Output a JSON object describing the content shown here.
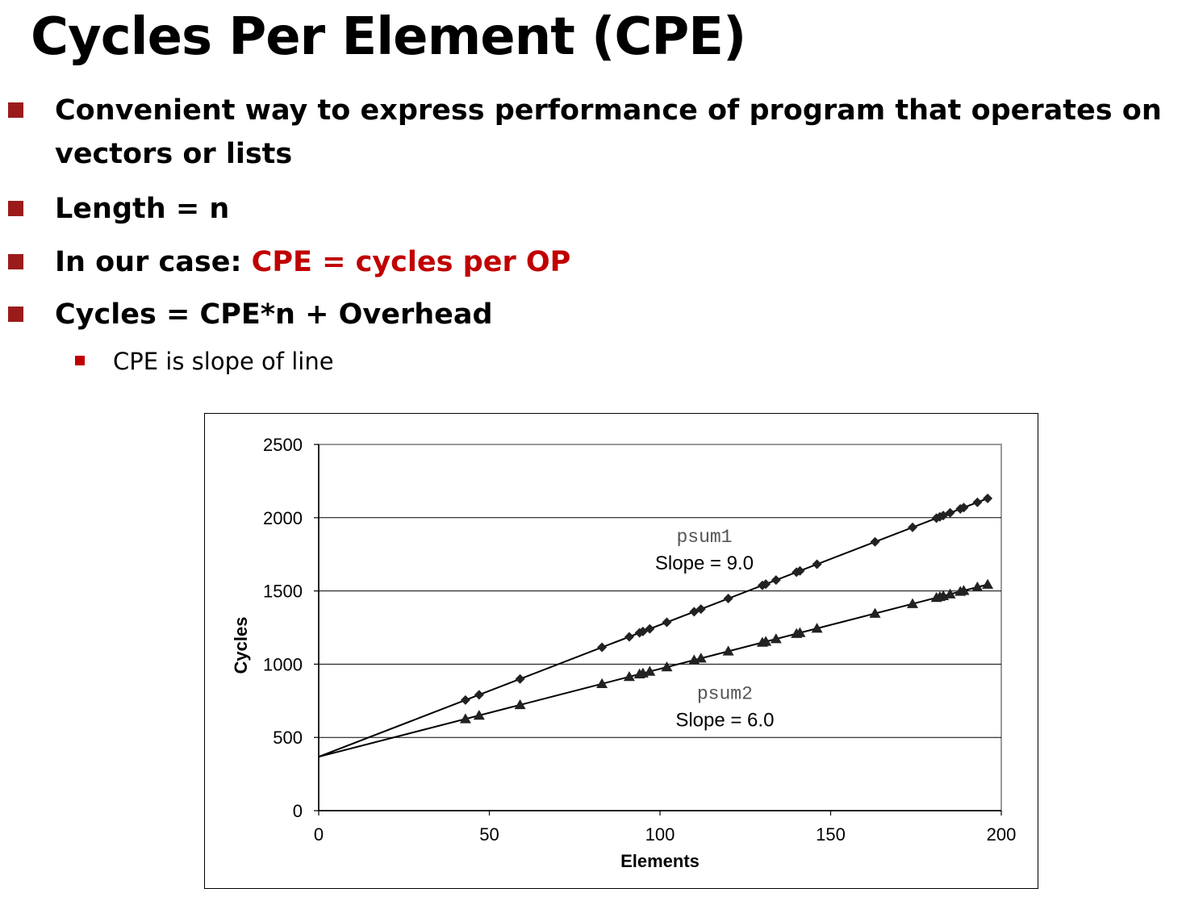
{
  "slide": {
    "title": "Cycles Per Element (CPE)",
    "bullets": [
      "Convenient way to express performance of program that operates on",
      "vectors or lists",
      "Length = n",
      "In our case: ",
      "CPE = cycles per OP",
      "Cycles = CPE*n + Overhead"
    ],
    "sub_bullets": [
      "CPE is slope of line"
    ]
  },
  "colors": {
    "accent": "#c00000",
    "bullet_marker": "#9b1b1b",
    "line": "#000000",
    "marker": "#222222",
    "grid": "#000000"
  },
  "chart_data": {
    "type": "scatter",
    "title": "",
    "xlabel": "Elements",
    "ylabel": "Cycles",
    "xlim": [
      0,
      200
    ],
    "ylim": [
      0,
      2500
    ],
    "xticks": [
      0,
      50,
      100,
      150,
      200
    ],
    "yticks": [
      0,
      500,
      1000,
      1500,
      2000,
      2500
    ],
    "x_tick_labels": [
      "0",
      "50",
      "100",
      "150",
      "200"
    ],
    "y_tick_labels": [
      "0",
      "500",
      "1000",
      "1500",
      "2000",
      "2500"
    ],
    "grid": "horizontal",
    "series": [
      {
        "name": "psum1",
        "marker": "diamond",
        "fit": {
          "slope": 9.0,
          "intercept": 368
        },
        "x": [
          43,
          47,
          59,
          83,
          91,
          94,
          95,
          97,
          102,
          110,
          112,
          120,
          130,
          131,
          134,
          140,
          141,
          146,
          163,
          174,
          181,
          182,
          183,
          185,
          188,
          189,
          193,
          196
        ],
        "y": [
          755,
          791,
          899,
          1115,
          1187,
          1214,
          1223,
          1241,
          1286,
          1358,
          1376,
          1448,
          1538,
          1547,
          1574,
          1628,
          1637,
          1682,
          1835,
          1934,
          1997,
          2006,
          2015,
          2033,
          2060,
          2069,
          2105,
          2132
        ]
      },
      {
        "name": "psum2",
        "marker": "triangle",
        "fit": {
          "slope": 6.0,
          "intercept": 368
        },
        "x": [
          43,
          47,
          59,
          83,
          91,
          94,
          95,
          97,
          102,
          110,
          112,
          120,
          130,
          131,
          134,
          140,
          141,
          146,
          163,
          174,
          181,
          182,
          183,
          185,
          188,
          189,
          193,
          196
        ],
        "y": [
          626,
          650,
          722,
          866,
          914,
          932,
          938,
          950,
          980,
          1028,
          1040,
          1088,
          1148,
          1154,
          1172,
          1208,
          1214,
          1244,
          1346,
          1412,
          1454,
          1460,
          1466,
          1478,
          1496,
          1502,
          1526,
          1544
        ]
      }
    ],
    "annotations": [
      {
        "series": "psum1",
        "name_text": "psum1",
        "slope_text": "Slope = 9.0",
        "at": [
          113,
          1835
        ]
      },
      {
        "series": "psum2",
        "name_text": "psum2",
        "slope_text": "Slope = 6.0",
        "at": [
          119,
          762
        ]
      }
    ]
  }
}
